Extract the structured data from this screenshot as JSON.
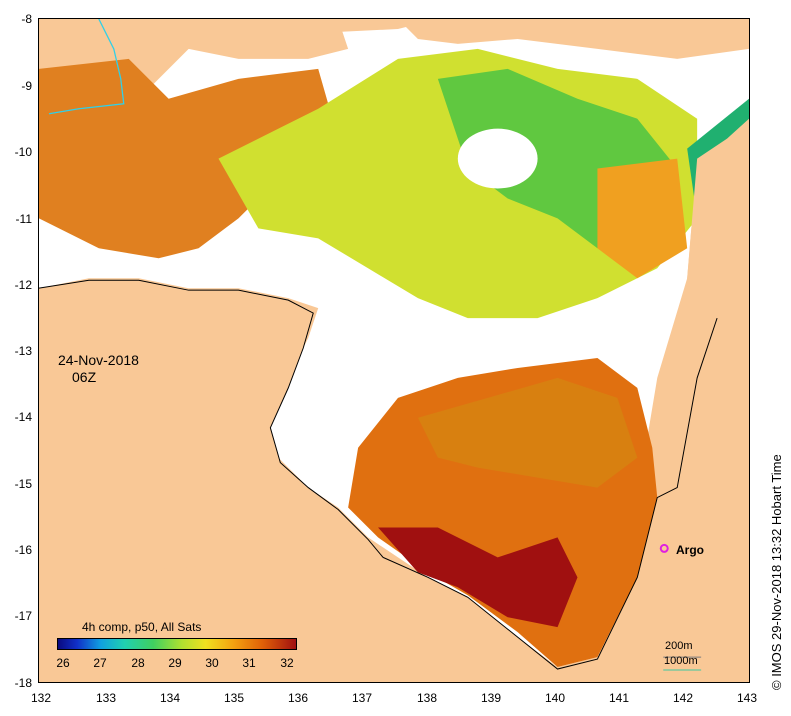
{
  "map": {
    "date": "24-Nov-2018",
    "time": "06Z",
    "legend_title": "4h comp, p50, All Sats",
    "colorbar_ticks": [
      "26",
      "27",
      "28",
      "29",
      "30",
      "31",
      "32"
    ],
    "y_ticks": [
      "-8",
      "-9",
      "-10",
      "-11",
      "-12",
      "-13",
      "-14",
      "-15",
      "-16",
      "-17",
      "-18"
    ],
    "x_ticks": [
      "132",
      "133",
      "134",
      "135",
      "136",
      "137",
      "138",
      "139",
      "140",
      "141",
      "142",
      "143"
    ],
    "argo_label": "Argo",
    "contour_200": "200m",
    "contour_1000": "1000m",
    "credit": "© IMOS 29-Nov-2018 13:32 Hobart Time",
    "colors": {
      "land": "#f9c896",
      "sst_hot": "#a01010",
      "sst_warm": "#e07010",
      "sst_mid": "#f0a020",
      "sst_cool": "#c8e020",
      "sst_green": "#40c040",
      "argo": "#e020e0"
    }
  }
}
